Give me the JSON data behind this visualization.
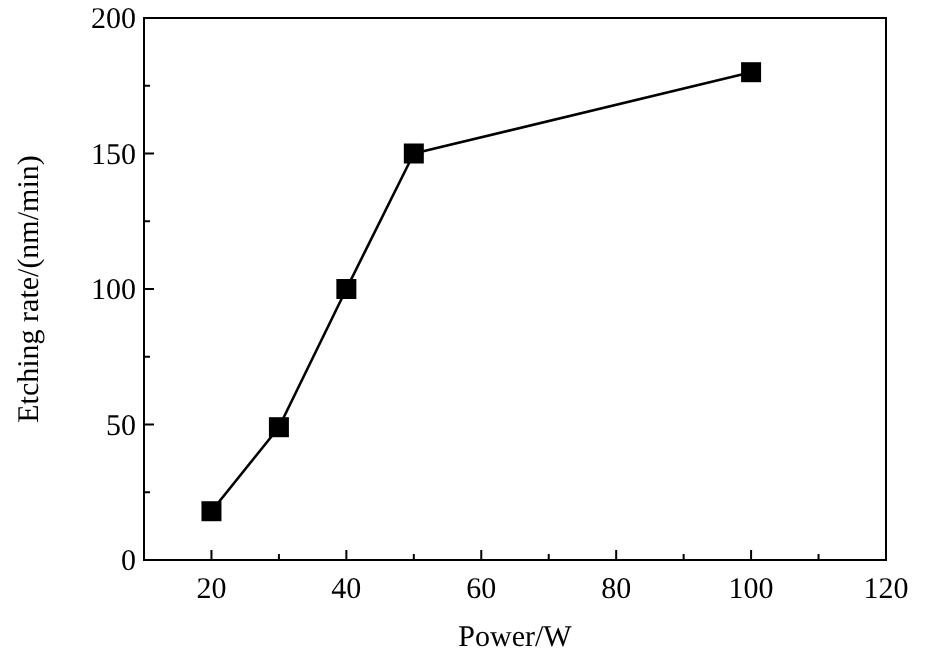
{
  "chart_data": {
    "type": "line",
    "xlabel": "Power/W",
    "ylabel": "Etching rate/(nm/min)",
    "x": [
      20,
      30,
      40,
      50,
      100
    ],
    "series": [
      {
        "color": "#000000",
        "values": [
          18,
          49,
          100,
          150,
          180
        ]
      }
    ],
    "xlim": [
      10,
      120
    ],
    "xticks": [
      20,
      {
        "value": 30,
        "label": null
      },
      40,
      {
        "value": 50,
        "label": null
      },
      60,
      {
        "value": 70,
        "label": null
      },
      80,
      {
        "value": 90,
        "label": null
      },
      100,
      {
        "value": 110,
        "label": null
      },
      120
    ],
    "ylim": [
      0,
      200
    ],
    "yticks": [
      0,
      {
        "value": 25,
        "label": null
      },
      50,
      {
        "value": 75,
        "label": null
      },
      100,
      {
        "value": 125,
        "label": null
      },
      150,
      {
        "value": 175,
        "label": null
      },
      200
    ],
    "marker": "square",
    "line_style": "solid"
  }
}
